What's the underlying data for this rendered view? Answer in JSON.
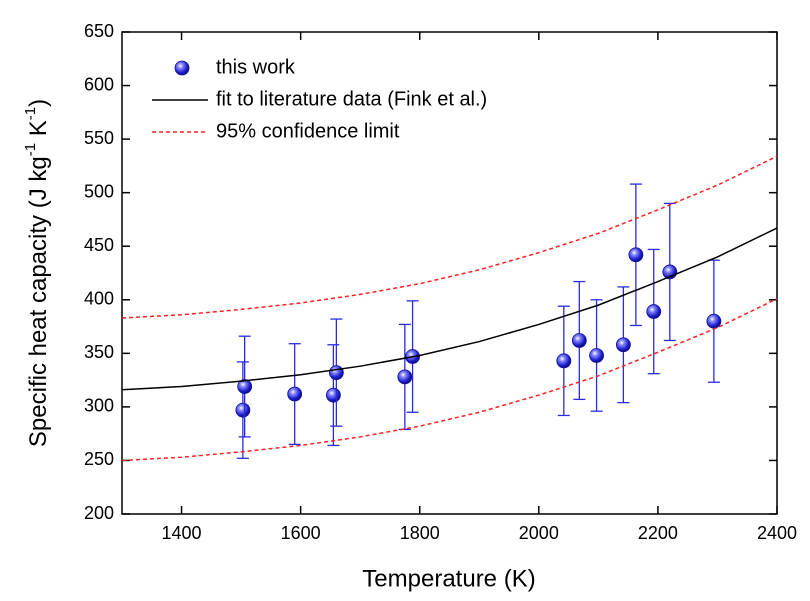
{
  "chart_data": {
    "type": "scatter",
    "xlabel": "Temperature (K)",
    "ylabel_parts": [
      "Specific heat capacity (J kg",
      "-1",
      " K",
      "-1",
      ")"
    ],
    "xlim": [
      1300,
      2400
    ],
    "ylim": [
      200,
      650
    ],
    "xticks": [
      1400,
      1600,
      1800,
      2000,
      2200,
      2400
    ],
    "yticks": [
      200,
      250,
      300,
      350,
      400,
      450,
      500,
      550,
      600,
      650
    ],
    "legend": "upper left",
    "series": [
      {
        "name": "this work",
        "color": "#2a2ae0",
        "x": [
          1503,
          1506,
          1590,
          1655,
          1660,
          1775,
          1788,
          2042,
          2068,
          2097,
          2142,
          2163,
          2193,
          2220,
          2294
        ],
        "values": [
          297,
          319,
          312,
          311,
          332,
          328,
          347,
          343,
          362,
          348,
          358,
          442,
          389,
          426,
          380
        ],
        "errors": [
          45,
          47,
          47,
          47,
          50,
          49,
          52,
          51,
          55,
          52,
          54,
          66,
          58,
          64,
          57
        ]
      },
      {
        "name": "fit to literature data (Fink et al.)",
        "color": "#000000",
        "x": [
          1300,
          1400,
          1500,
          1600,
          1700,
          1800,
          1900,
          2000,
          2100,
          2200,
          2300,
          2400
        ],
        "values": [
          316,
          319,
          324,
          330,
          338,
          348,
          361,
          377,
          395,
          417,
          440,
          467
        ]
      },
      {
        "name": "95% confidence limit",
        "color": "#ff2020",
        "dashed": true,
        "x": [
          1300,
          1400,
          1500,
          1600,
          1700,
          1800,
          1900,
          2000,
          2100,
          2200,
          2300,
          2400
        ],
        "upper": [
          383,
          386,
          391,
          397,
          405,
          415,
          428,
          444,
          462,
          484,
          507,
          534
        ],
        "lower": [
          250,
          253,
          258,
          264,
          272,
          282,
          295,
          311,
          329,
          351,
          374,
          401
        ]
      }
    ]
  }
}
